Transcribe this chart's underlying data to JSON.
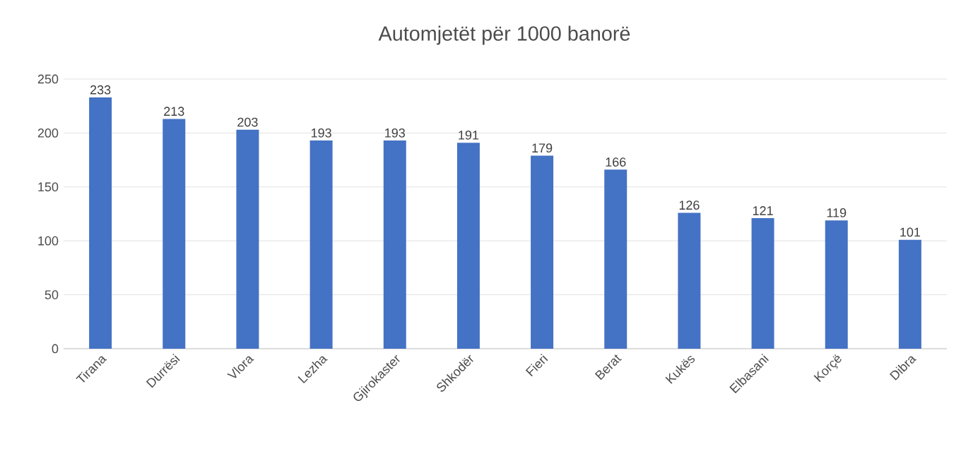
{
  "chart_data": {
    "type": "bar",
    "title": "Automjetët për 1000 banorë",
    "categories": [
      "Tirana",
      "Durrësi",
      "Vlora",
      "Lezha",
      "Gjirokaster",
      "Shkodër",
      "Fieri",
      "Berat",
      "Kukës",
      "Elbasani",
      "Korçë",
      "Dibra"
    ],
    "values": [
      233,
      213,
      203,
      193,
      193,
      191,
      179,
      166,
      126,
      121,
      119,
      101
    ],
    "color": "#4472c4",
    "ylim": [
      0,
      250
    ],
    "yticks": [
      0,
      50,
      100,
      150,
      200,
      250
    ],
    "grid": "y",
    "data_labels": true
  }
}
